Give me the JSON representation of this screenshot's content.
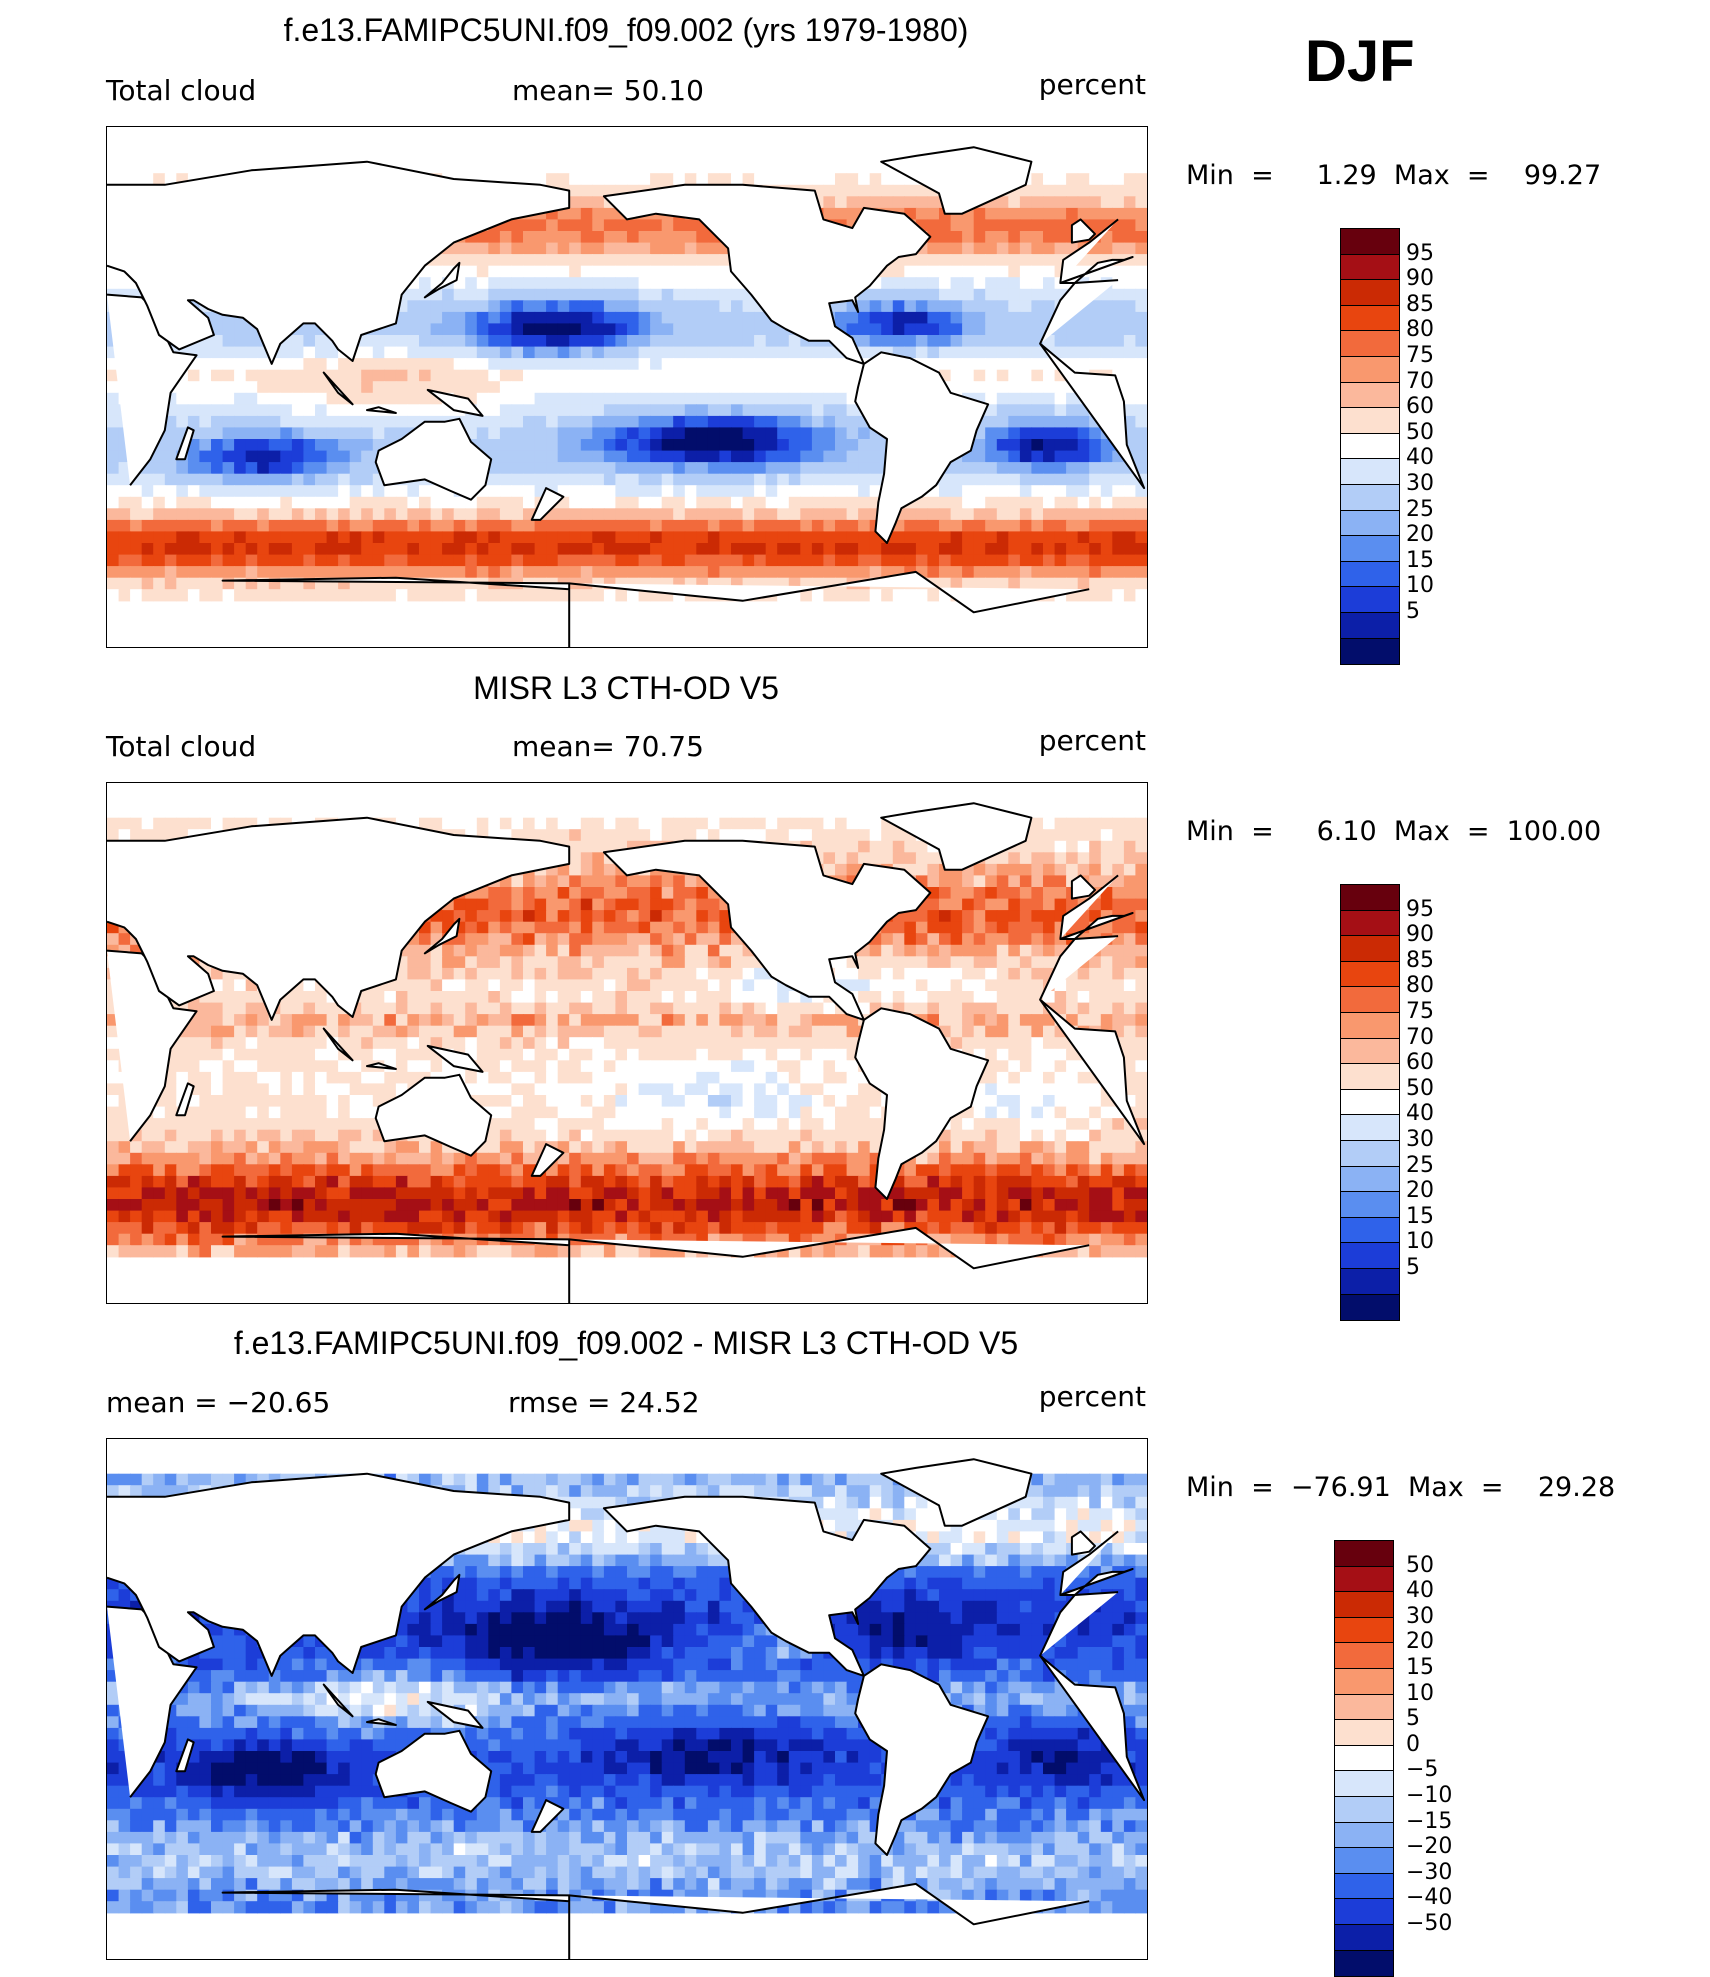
{
  "season": "DJF",
  "unit": "percent",
  "panels": [
    {
      "title": "f.e13.FAMIPC5UNI.f09_f09.002 (yrs 1979-1980)",
      "left_label": "Total cloud",
      "mid_label": "mean=   50.10",
      "right_label": "percent",
      "minmax": "Min  =     1.29  Max  =    99.27",
      "scheme": "abs",
      "field": "model"
    },
    {
      "title": "MISR L3 CTH-OD V5",
      "left_label": "Total cloud",
      "mid_label": "mean=   70.75",
      "right_label": "percent",
      "minmax": "Min  =     6.10  Max  =  100.00",
      "scheme": "abs",
      "field": "obs"
    },
    {
      "title": "f.e13.FAMIPC5UNI.f09_f09.002 - MISR L3 CTH-OD V5",
      "left_label": "mean  =  −20.65",
      "mid_label": "rmse  =    24.52",
      "right_label": "percent",
      "minmax": "Min  =  −76.91  Max  =    29.28",
      "scheme": "diff",
      "field": "diff"
    }
  ],
  "colorbars": {
    "abs": {
      "labels": [
        "95",
        "90",
        "85",
        "80",
        "75",
        "70",
        "60",
        "50",
        "40",
        "30",
        "25",
        "20",
        "15",
        "10",
        "5"
      ],
      "colors": [
        "#67000d",
        "#a50f15",
        "#cb2a04",
        "#e8450f",
        "#f26a3c",
        "#f9986e",
        "#fbb89c",
        "#fde0cf",
        "#ffffff",
        "#d7e6fb",
        "#b2cdf7",
        "#8bb2f4",
        "#5a8ef0",
        "#2f62ea",
        "#1c3dd8",
        "#0c1fa8",
        "#020d6b"
      ]
    },
    "diff": {
      "labels": [
        "50",
        "40",
        "30",
        "20",
        "15",
        "10",
        "5",
        "0",
        "−5",
        "−10",
        "−15",
        "−20",
        "−30",
        "−40",
        "−50"
      ],
      "colors": [
        "#67000d",
        "#a50f15",
        "#cb2a04",
        "#e8450f",
        "#f26a3c",
        "#f9986e",
        "#fbb89c",
        "#fde0cf",
        "#ffffff",
        "#d7e6fb",
        "#b2cdf7",
        "#8bb2f4",
        "#5a8ef0",
        "#2f62ea",
        "#1c3dd8",
        "#0c1fa8",
        "#020d6b"
      ]
    }
  },
  "chart_data": [
    {
      "type": "heatmap",
      "title": "f.e13.FAMIPC5UNI.f09_f09.002 (yrs 1979-1980)",
      "variable": "Total cloud",
      "units": "percent",
      "mean": 50.1,
      "min": 1.29,
      "max": 99.27,
      "contour_levels": [
        5,
        10,
        15,
        20,
        25,
        30,
        40,
        50,
        60,
        70,
        75,
        80,
        85,
        90,
        95
      ]
    },
    {
      "type": "heatmap",
      "title": "MISR L3 CTH-OD V5",
      "variable": "Total cloud",
      "units": "percent",
      "mean": 70.75,
      "min": 6.1,
      "max": 100.0,
      "contour_levels": [
        5,
        10,
        15,
        20,
        25,
        30,
        40,
        50,
        60,
        70,
        75,
        80,
        85,
        90,
        95
      ]
    },
    {
      "type": "heatmap",
      "title": "f.e13.FAMIPC5UNI.f09_f09.002 - MISR L3 CTH-OD V5",
      "units": "percent",
      "mean": -20.65,
      "rmse": 24.52,
      "min": -76.91,
      "max": 29.28,
      "contour_levels": [
        -50,
        -40,
        -30,
        -20,
        -15,
        -10,
        -5,
        0,
        5,
        10,
        15,
        20,
        30,
        40,
        50
      ]
    }
  ]
}
